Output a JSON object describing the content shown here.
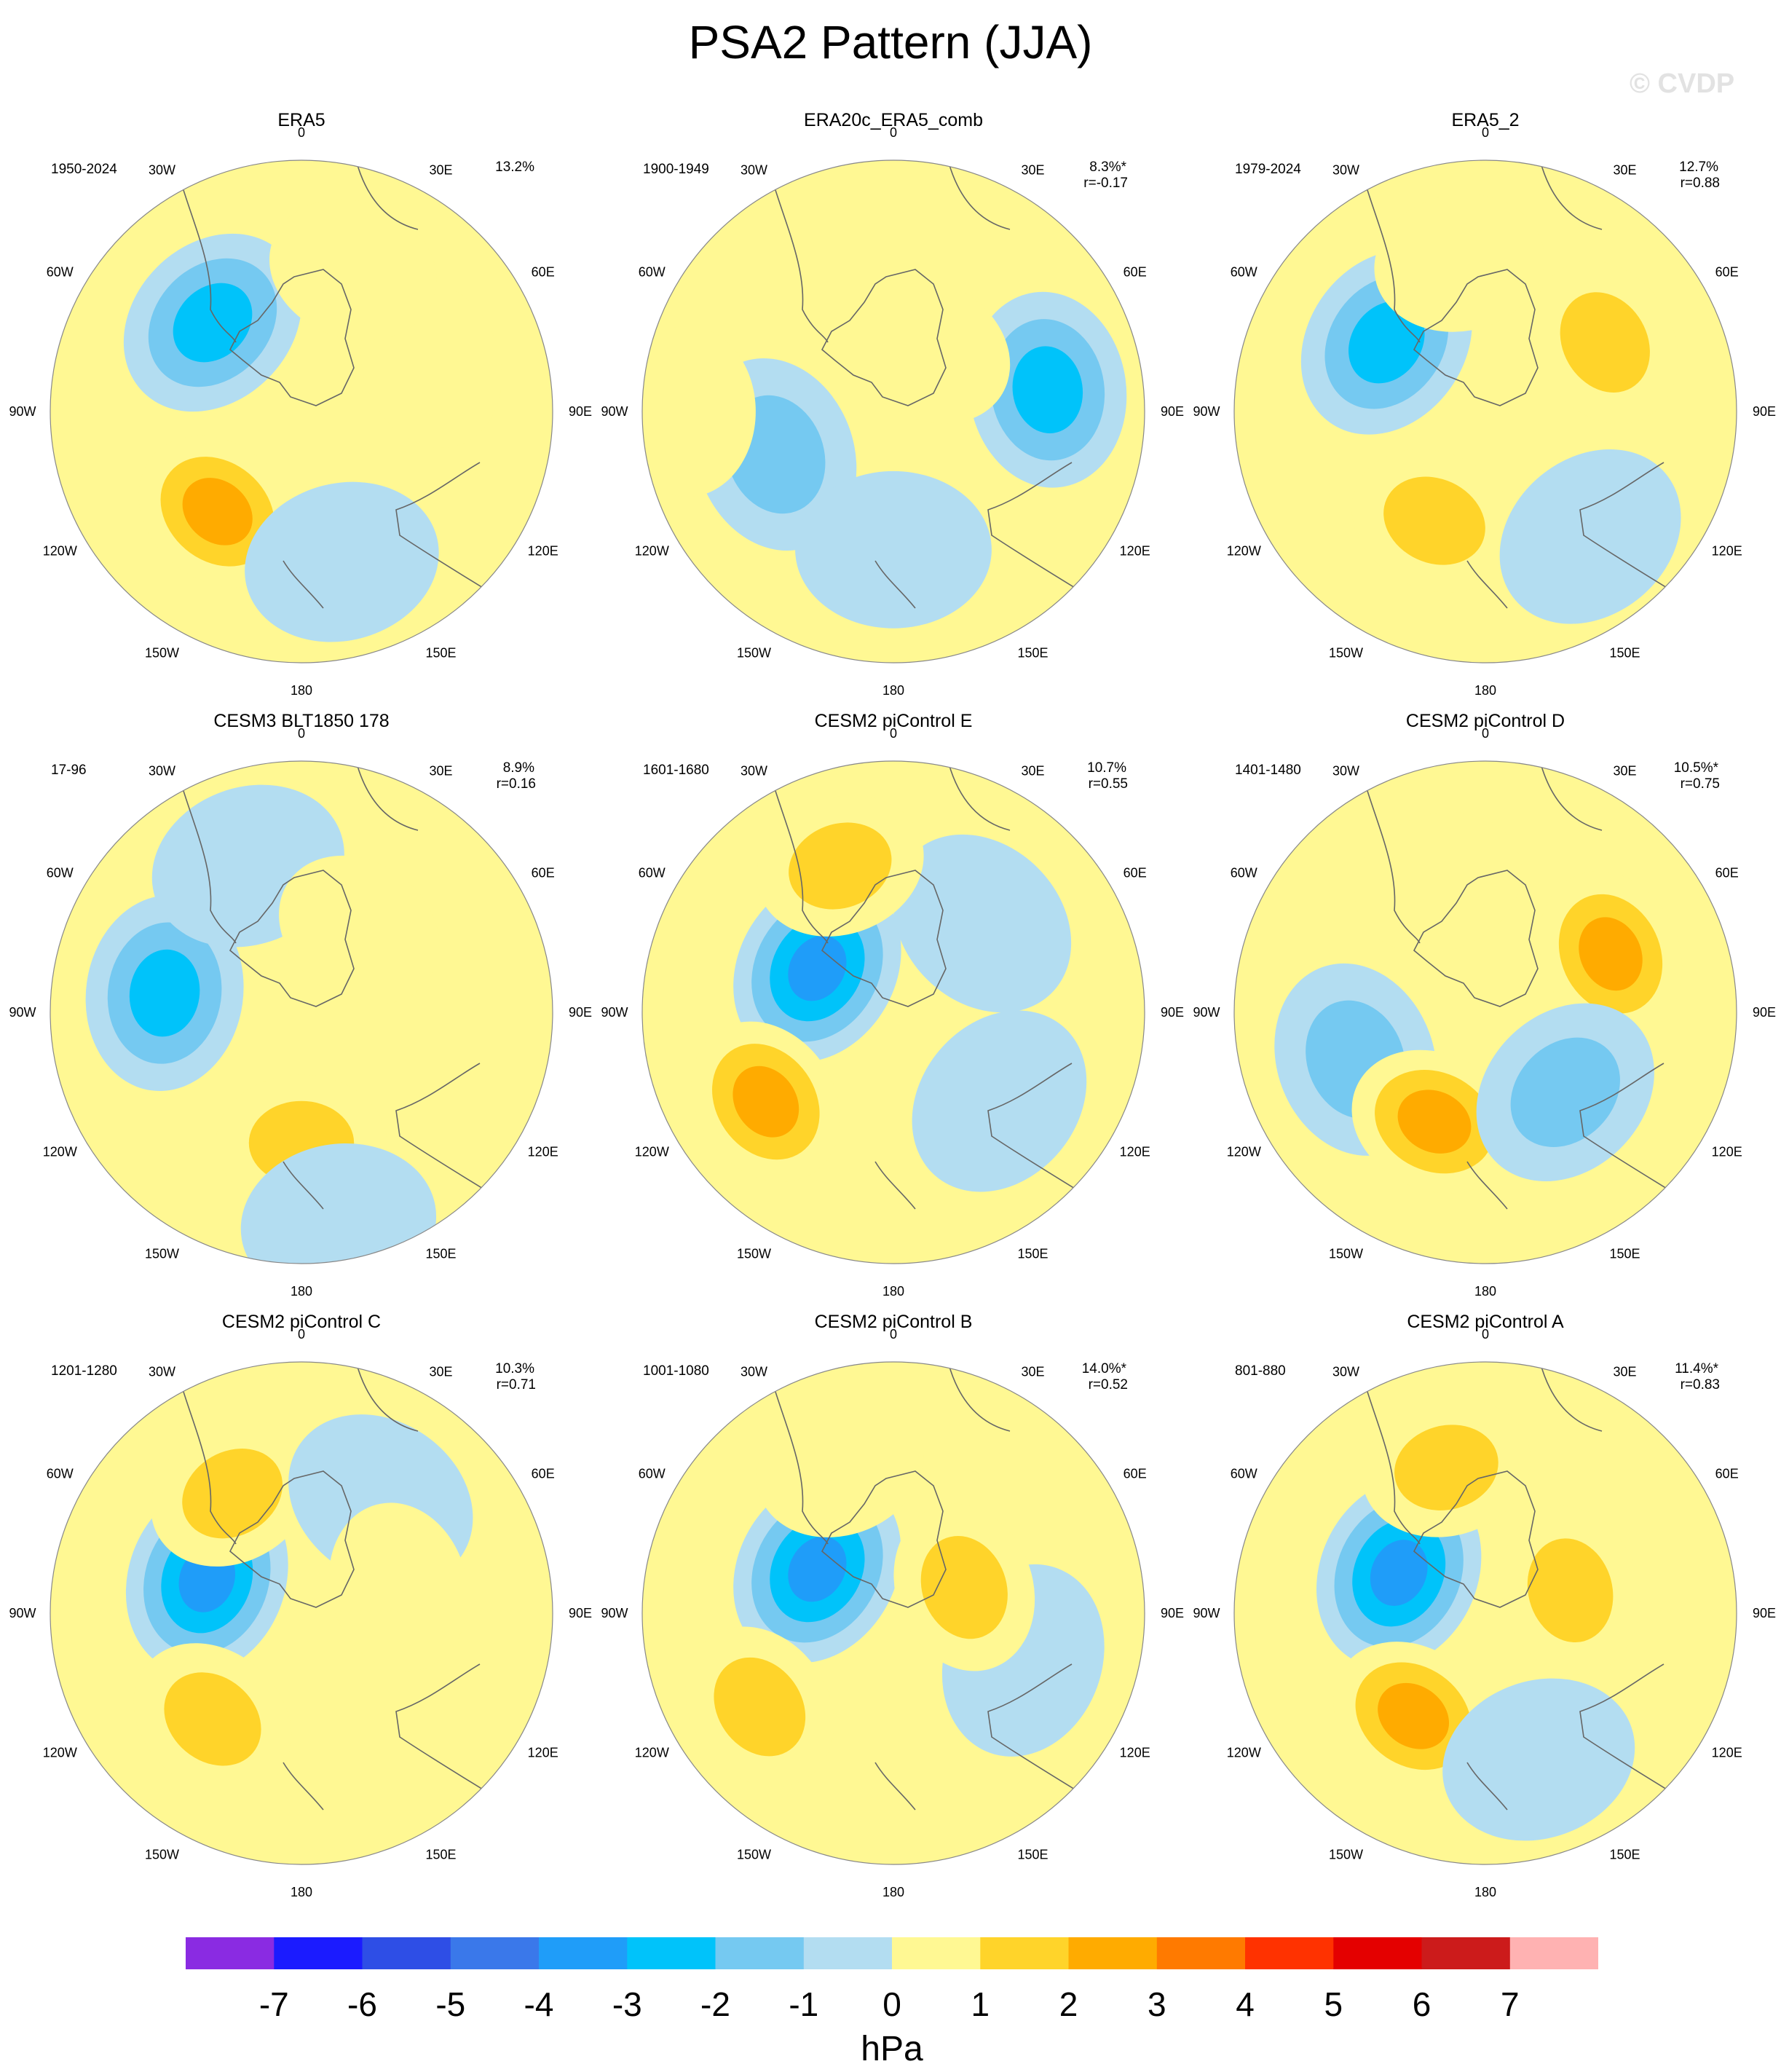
{
  "title": "PSA2 Pattern (JJA)",
  "watermark": "© CVDP",
  "lon_labels": [
    "0",
    "30E",
    "60E",
    "90E",
    "120E",
    "150E",
    "180",
    "150W",
    "120W",
    "90W",
    "60W",
    "30W"
  ],
  "colors": {
    "-7": "#8a2be2",
    "-6": "#1b1bff",
    "-5": "#2e4ee6",
    "-4": "#3a78ea",
    "-3": "#1f9df9",
    "-2": "#00c3fa",
    "-1": "#75c9f1",
    "0": "#b3ddf1",
    "1": "#fff893",
    "2": "#ffd42a",
    "3": "#ffab00",
    "4": "#ff7a00",
    "5": "#ff3200",
    "6": "#e40000",
    "7": "#cc1b1b",
    "8": "#ffb2b2"
  },
  "colorbar": {
    "unit": "hPa",
    "ticks": [
      "-7",
      "-6",
      "-5",
      "-4",
      "-3",
      "-2",
      "-1",
      "0",
      "1",
      "2",
      "3",
      "4",
      "5",
      "6",
      "7"
    ]
  },
  "panels": [
    {
      "name": "ERA5",
      "period": "1950-2024",
      "variance": "13.2%",
      "corr": "",
      "features": [
        {
          "lon": 315,
          "r": 0.5,
          "level": -3
        },
        {
          "lon": 220,
          "r": 0.52,
          "level": 3
        },
        {
          "lon": 165,
          "r": 0.62,
          "level": -1
        },
        {
          "lon": 70,
          "r": 0.55,
          "level": 1
        },
        {
          "lon": 20,
          "r": 0.6,
          "level": 1
        }
      ]
    },
    {
      "name": "ERA20c_ERA5_comb",
      "period": "1900-1949",
      "variance": "8.3%*",
      "corr": "r=-0.17",
      "features": [
        {
          "lon": 82,
          "r": 0.62,
          "level": -3
        },
        {
          "lon": 250,
          "r": 0.5,
          "level": -2
        },
        {
          "lon": 30,
          "r": 0.28,
          "level": 1
        },
        {
          "lon": 270,
          "r": 0.82,
          "level": 1
        },
        {
          "lon": 180,
          "r": 0.55,
          "level": -1
        }
      ]
    },
    {
      "name": "ERA5_2",
      "period": "1979-2024",
      "variance": "12.7%",
      "corr": "r=0.88",
      "features": [
        {
          "lon": 305,
          "r": 0.48,
          "level": -3
        },
        {
          "lon": 205,
          "r": 0.48,
          "level": 2
        },
        {
          "lon": 140,
          "r": 0.65,
          "level": -1
        },
        {
          "lon": 60,
          "r": 0.55,
          "level": 2
        },
        {
          "lon": 350,
          "r": 0.6,
          "level": 1
        }
      ]
    },
    {
      "name": "CESM3 BLT1850 178",
      "period": "17-96",
      "variance": "8.9%",
      "corr": "r=0.16",
      "features": [
        {
          "lon": 278,
          "r": 0.55,
          "level": -3
        },
        {
          "lon": 180,
          "r": 0.52,
          "level": 2
        },
        {
          "lon": 340,
          "r": 0.62,
          "level": -1
        },
        {
          "lon": 35,
          "r": 0.4,
          "level": 1
        },
        {
          "lon": 170,
          "r": 0.85,
          "level": -1
        }
      ]
    },
    {
      "name": "CESM2 piControl E",
      "period": "1601-1680",
      "variance": "10.7%",
      "corr": "r=0.55",
      "features": [
        {
          "lon": 300,
          "r": 0.35,
          "level": -4
        },
        {
          "lon": 235,
          "r": 0.62,
          "level": 3
        },
        {
          "lon": 130,
          "r": 0.55,
          "level": -1
        },
        {
          "lon": 45,
          "r": 0.5,
          "level": -1
        },
        {
          "lon": 340,
          "r": 0.62,
          "level": 2
        }
      ]
    },
    {
      "name": "CESM2 piControl D",
      "period": "1401-1480",
      "variance": "10.5%*",
      "corr": "r=0.75",
      "features": [
        {
          "lon": 65,
          "r": 0.55,
          "level": 3
        },
        {
          "lon": 250,
          "r": 0.55,
          "level": -2
        },
        {
          "lon": 205,
          "r": 0.48,
          "level": 3
        },
        {
          "lon": 135,
          "r": 0.45,
          "level": -2
        },
        {
          "lon": 340,
          "r": 0.55,
          "level": 1
        }
      ]
    },
    {
      "name": "CESM2 piControl C",
      "period": "1201-1280",
      "variance": "10.3%",
      "corr": "r=0.71",
      "features": [
        {
          "lon": 290,
          "r": 0.4,
          "level": -4
        },
        {
          "lon": 220,
          "r": 0.55,
          "level": 2
        },
        {
          "lon": 330,
          "r": 0.55,
          "level": 2
        },
        {
          "lon": 35,
          "r": 0.55,
          "level": -1
        },
        {
          "lon": 75,
          "r": 0.4,
          "level": 1
        }
      ]
    },
    {
      "name": "CESM2 piControl B",
      "period": "1001-1080",
      "variance": "14.0%*",
      "corr": "r=0.52",
      "features": [
        {
          "lon": 300,
          "r": 0.35,
          "level": -4
        },
        {
          "lon": 235,
          "r": 0.65,
          "level": 2
        },
        {
          "lon": 110,
          "r": 0.55,
          "level": -1
        },
        {
          "lon": 70,
          "r": 0.3,
          "level": 2
        },
        {
          "lon": 340,
          "r": 0.62,
          "level": 1
        }
      ]
    },
    {
      "name": "CESM2 piControl A",
      "period": "801-880",
      "variance": "11.4%*",
      "corr": "r=0.83",
      "features": [
        {
          "lon": 295,
          "r": 0.38,
          "level": -4
        },
        {
          "lon": 215,
          "r": 0.5,
          "level": 3
        },
        {
          "lon": 160,
          "r": 0.62,
          "level": -1
        },
        {
          "lon": 345,
          "r": 0.6,
          "level": 2
        },
        {
          "lon": 75,
          "r": 0.35,
          "level": 2
        }
      ]
    }
  ]
}
